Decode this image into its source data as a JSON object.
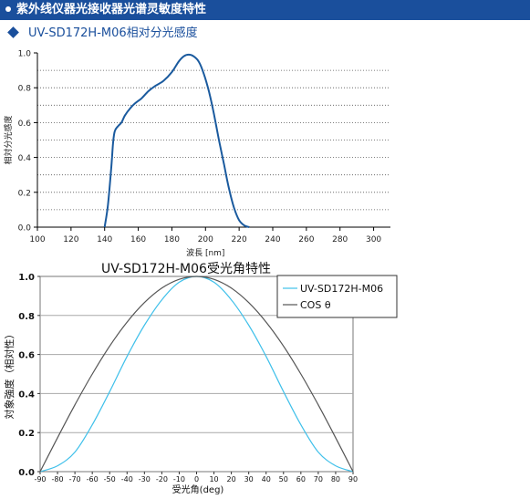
{
  "header": {
    "title": "紫外线仪器光接收器光谱灵敏度特性"
  },
  "subheader": {
    "title": "UV-SD172H-M06相对分光感度"
  },
  "chart_data": [
    {
      "type": "line",
      "title": "",
      "xlabel": "波長 [nm]",
      "ylabel": "相対分光感度",
      "xlim": [
        100,
        310
      ],
      "ylim": [
        0,
        1.0
      ],
      "x_ticks": [
        "100",
        "120",
        "140",
        "160",
        "180",
        "200",
        "220",
        "240",
        "260",
        "280",
        "300"
      ],
      "y_ticks": [
        "0.0",
        "0.2",
        "0.4",
        "0.6",
        "0.8",
        "1.0"
      ],
      "grid": "horizontal dotted",
      "series": [
        {
          "color": "#1a5a9e",
          "points": [
            [
              140,
              0.0
            ],
            [
              142,
              0.13
            ],
            [
              144,
              0.35
            ],
            [
              145,
              0.48
            ],
            [
              146,
              0.55
            ],
            [
              148,
              0.58
            ],
            [
              150,
              0.6
            ],
            [
              152,
              0.64
            ],
            [
              155,
              0.68
            ],
            [
              158,
              0.71
            ],
            [
              162,
              0.74
            ],
            [
              166,
              0.78
            ],
            [
              170,
              0.81
            ],
            [
              175,
              0.84
            ],
            [
              180,
              0.89
            ],
            [
              184,
              0.95
            ],
            [
              187,
              0.98
            ],
            [
              190,
              0.99
            ],
            [
              193,
              0.98
            ],
            [
              196,
              0.95
            ],
            [
              199,
              0.88
            ],
            [
              202,
              0.78
            ],
            [
              205,
              0.65
            ],
            [
              208,
              0.5
            ],
            [
              211,
              0.36
            ],
            [
              214,
              0.22
            ],
            [
              217,
              0.11
            ],
            [
              220,
              0.04
            ],
            [
              223,
              0.01
            ],
            [
              226,
              0.0
            ]
          ]
        }
      ]
    },
    {
      "type": "line",
      "title": "UV-SD172H-M06受光角特性",
      "xlabel": "受光角(deg)",
      "ylabel": "対象強度（相対性）",
      "xlim": [
        -90,
        90
      ],
      "ylim": [
        0,
        1.0
      ],
      "x_ticks": [
        "-90",
        "-80",
        "-70",
        "-60",
        "-50",
        "-40",
        "-30",
        "-20",
        "-10",
        "0",
        "10",
        "20",
        "30",
        "40",
        "50",
        "60",
        "70",
        "80",
        "90"
      ],
      "y_ticks": [
        "0.0",
        "0.2",
        "0.4",
        "0.6",
        "0.8",
        "1.0"
      ],
      "grid": "horizontal solid",
      "legend_position": "top-right",
      "series": [
        {
          "name": "UV-SD172H-M06",
          "color": "#3fc0ea",
          "points": [
            [
              -90,
              0.0
            ],
            [
              -80,
              0.03
            ],
            [
              -70,
              0.1
            ],
            [
              -60,
              0.24
            ],
            [
              -50,
              0.41
            ],
            [
              -40,
              0.59
            ],
            [
              -30,
              0.75
            ],
            [
              -20,
              0.88
            ],
            [
              -10,
              0.97
            ],
            [
              0,
              1.0
            ],
            [
              10,
              0.97
            ],
            [
              20,
              0.88
            ],
            [
              30,
              0.75
            ],
            [
              40,
              0.59
            ],
            [
              50,
              0.41
            ],
            [
              60,
              0.24
            ],
            [
              70,
              0.1
            ],
            [
              80,
              0.03
            ],
            [
              90,
              0.0
            ]
          ]
        },
        {
          "name": "COS θ",
          "color": "#555555",
          "points": [
            [
              -90,
              0.0
            ],
            [
              -80,
              0.174
            ],
            [
              -70,
              0.342
            ],
            [
              -60,
              0.5
            ],
            [
              -50,
              0.643
            ],
            [
              -40,
              0.766
            ],
            [
              -30,
              0.866
            ],
            [
              -20,
              0.94
            ],
            [
              -10,
              0.985
            ],
            [
              0,
              1.0
            ],
            [
              10,
              0.985
            ],
            [
              20,
              0.94
            ],
            [
              30,
              0.866
            ],
            [
              40,
              0.766
            ],
            [
              50,
              0.643
            ],
            [
              60,
              0.5
            ],
            [
              70,
              0.342
            ],
            [
              80,
              0.174
            ],
            [
              90,
              0.0
            ]
          ]
        }
      ]
    }
  ]
}
